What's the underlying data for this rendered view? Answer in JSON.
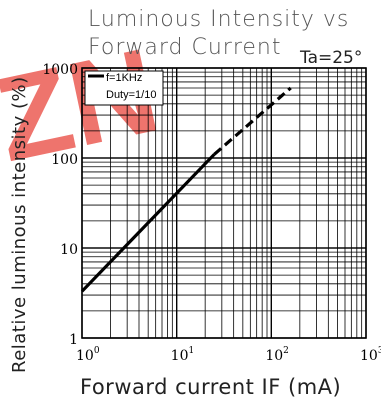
{
  "watermark": {
    "text": "ZN",
    "color": "#e8453c"
  },
  "chart_data": {
    "type": "line",
    "title_line1": "Luminous Intensity vs",
    "title_line2": "Forward Current",
    "condition": "Ta=25°",
    "xlabel": "Forward current IF (mA)",
    "ylabel": "Relative luminous intensity (%)",
    "x_scale": "log",
    "y_scale": "log",
    "xlim": [
      1,
      1000
    ],
    "ylim": [
      1,
      1000
    ],
    "grid": true,
    "x_ticks": [
      {
        "value": 1,
        "base": "10",
        "exp": "0"
      },
      {
        "value": 10,
        "base": "10",
        "exp": "1"
      },
      {
        "value": 100,
        "base": "10",
        "exp": "2"
      },
      {
        "value": 1000,
        "base": "10",
        "exp": "3"
      }
    ],
    "y_ticks": [
      {
        "value": 1,
        "label": "1"
      },
      {
        "value": 10,
        "label": "10"
      },
      {
        "value": 100,
        "label": "100"
      },
      {
        "value": 1000,
        "label": "1000"
      }
    ],
    "legend": {
      "placement": "top-left",
      "line1": "f=1KHz",
      "line2": "Duty=1/10"
    },
    "series": [
      {
        "style": "solid",
        "color": "#000000",
        "x": [
          1,
          25
        ],
        "y": [
          3.3,
          110
        ]
      },
      {
        "style": "dashed",
        "color": "#000000",
        "x": [
          25,
          160
        ],
        "y": [
          110,
          600
        ]
      }
    ]
  }
}
